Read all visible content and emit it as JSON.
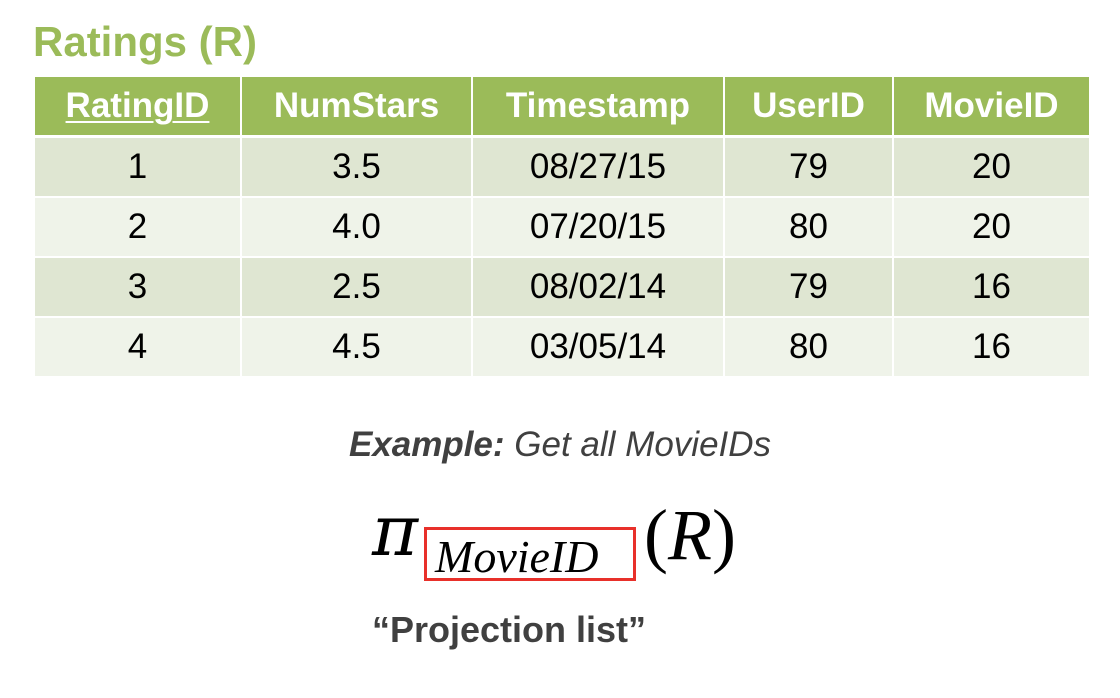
{
  "title": "Ratings (R)",
  "colors": {
    "accent": "#9bbb59",
    "row_odd": "#dfe6d2",
    "row_even": "#eff3e9",
    "highlight_box": "#e8302a",
    "body_text": "#404040"
  },
  "table": {
    "headers": [
      "RatingID",
      "NumStars",
      "Timestamp",
      "UserID",
      "MovieID"
    ],
    "key_column": "RatingID",
    "rows": [
      [
        "1",
        "3.5",
        "08/27/15",
        "79",
        "20"
      ],
      [
        "2",
        "4.0",
        "07/20/15",
        "80",
        "20"
      ],
      [
        "3",
        "2.5",
        "08/02/14",
        "79",
        "16"
      ],
      [
        "4",
        "4.5",
        "03/05/14",
        "80",
        "16"
      ]
    ]
  },
  "example": {
    "label": "Example:",
    "text": "Get all MovieIDs"
  },
  "formula": {
    "operator": "π",
    "subscript": "MovieID",
    "open_paren": "(",
    "relation": "R",
    "close_paren": ")"
  },
  "caption": "“Projection list”"
}
